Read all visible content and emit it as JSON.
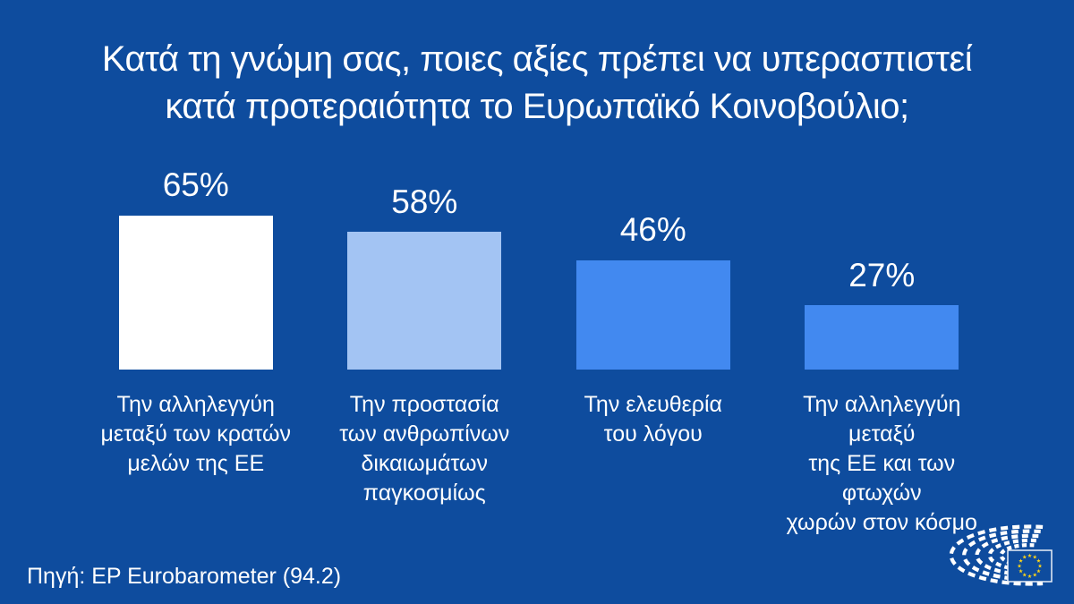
{
  "page": {
    "background_color": "#0e4c9e",
    "text_color": "#ffffff"
  },
  "header": {
    "title_line1": "Κατά τη γνώμη σας, ποιες αξίες πρέπει να υπερασπιστεί",
    "title_line2": "κατά προτεραιότητα το Ευρωπαϊκό Κοινοβούλιο;"
  },
  "chart_data": {
    "type": "bar",
    "title": "Κατά τη γνώμη σας, ποιες αξίες πρέπει να υπερασπιστεί κατά προτεραιότητα το Ευρωπαϊκό Κοινοβούλιο;",
    "unit": "%",
    "ylim": [
      0,
      100
    ],
    "grid": false,
    "axes_visible": false,
    "value_label_position": "above-bars",
    "legend": "none",
    "categories": [
      "Την αλληλεγγύη\nμεταξύ των κρατών\nμελών της ΕΕ",
      "Την προστασία\nτων ανθρωπίνων\nδικαιωμάτων\nπαγκοσμίως",
      "Την ελευθερία\nτου λόγου",
      "Την αλληλεγγύη μεταξύ\nτης ΕΕ και των φτωχών\nχωρών στον κόσμο"
    ],
    "values": [
      65,
      58,
      46,
      27
    ],
    "value_labels": [
      "65%",
      "58%",
      "46%",
      "27%"
    ],
    "bar_colors": [
      "#ffffff",
      "#a3c4f3",
      "#4289f0",
      "#4289f0"
    ]
  },
  "footer": {
    "source": "Πηγή: EP Eurobarometer (94.2)"
  },
  "logo": {
    "name": "european-parliament-logo",
    "description": "European Parliament hemicycle with EU flag",
    "star_color": "#ffd617",
    "flag_border_color": "#e9eef7"
  }
}
